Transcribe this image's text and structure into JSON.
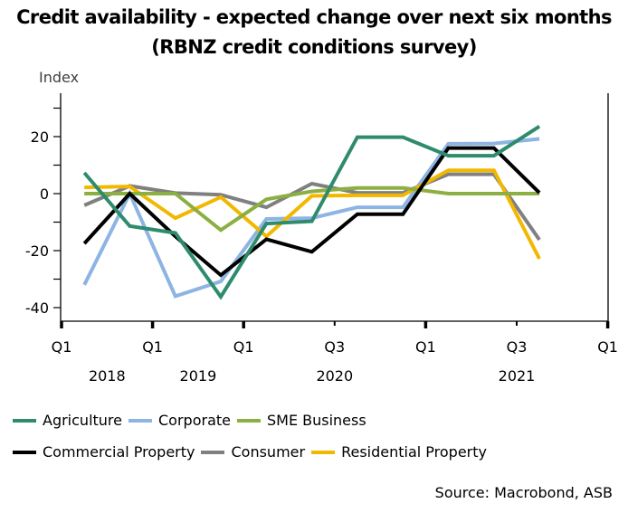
{
  "chart_data": {
    "type": "line",
    "title": "Credit availability - expected change over next six months",
    "subtitle": "(RBNZ credit conditions survey)",
    "ylabel": "Index",
    "xlabel": "",
    "ylim": [
      -45,
      35
    ],
    "yticks_major": [
      20,
      0,
      -20,
      -40
    ],
    "yticks_minor": [
      30,
      10,
      -10,
      -30
    ],
    "ytick_labels": [
      "20",
      "0",
      "-20",
      "-40"
    ],
    "xticks": [
      {
        "label": "Q1",
        "major": true
      },
      {
        "label": "Q1",
        "major": true
      },
      {
        "label": "Q1",
        "major": true
      },
      {
        "label": "Q3",
        "major": false
      },
      {
        "label": "Q1",
        "major": true
      },
      {
        "label": "Q3",
        "major": false
      },
      {
        "label": "Q1",
        "major": true
      }
    ],
    "year_labels": [
      {
        "label": "2018",
        "at": 0.5
      },
      {
        "label": "2019",
        "at": 1.5
      },
      {
        "label": "2020",
        "at": 3
      },
      {
        "label": "2021",
        "at": 5
      }
    ],
    "x": [
      0.25,
      0.75,
      1.25,
      1.75,
      2.25,
      2.75,
      3.25,
      3.75,
      4.25,
      4.75,
      5.25
    ],
    "grid": false,
    "legend_position": "bottom",
    "series": [
      {
        "name": "Agriculture",
        "color": "#2E8B6E",
        "values": [
          7.3,
          -11.4,
          -13.8,
          -36.2,
          -10.5,
          -9.7,
          19.8,
          19.8,
          13.3,
          13.3,
          23.6
        ]
      },
      {
        "name": "Corporate",
        "color": "#8DB4E2",
        "values": [
          -32,
          0,
          -36,
          -30.8,
          -8.9,
          -8.6,
          -4.8,
          -4.8,
          17.5,
          17.6,
          19.2
        ]
      },
      {
        "name": "SME Business",
        "color": "#8BAF42",
        "values": [
          0,
          0,
          0,
          -12.8,
          -2,
          0.8,
          2,
          2,
          0,
          0,
          0
        ]
      },
      {
        "name": "Commercial Property",
        "color": "#000000",
        "values": [
          -17.5,
          0,
          -15,
          -28.6,
          -16,
          -20.4,
          -7.2,
          -7.2,
          16,
          16,
          0.3
        ]
      },
      {
        "name": "Consumer",
        "color": "#808080",
        "values": [
          -4.1,
          2.7,
          0.2,
          -0.4,
          -4.8,
          3.5,
          0.3,
          0.3,
          6.8,
          6.8,
          -16.2
        ]
      },
      {
        "name": "Residential Property",
        "color": "#F2B800",
        "values": [
          2.2,
          2.5,
          -8.6,
          -1.2,
          -15,
          -0.8,
          -0.6,
          -0.6,
          8.2,
          8.2,
          -22.9
        ]
      }
    ],
    "source": "Source: Macrobond, ASB"
  }
}
